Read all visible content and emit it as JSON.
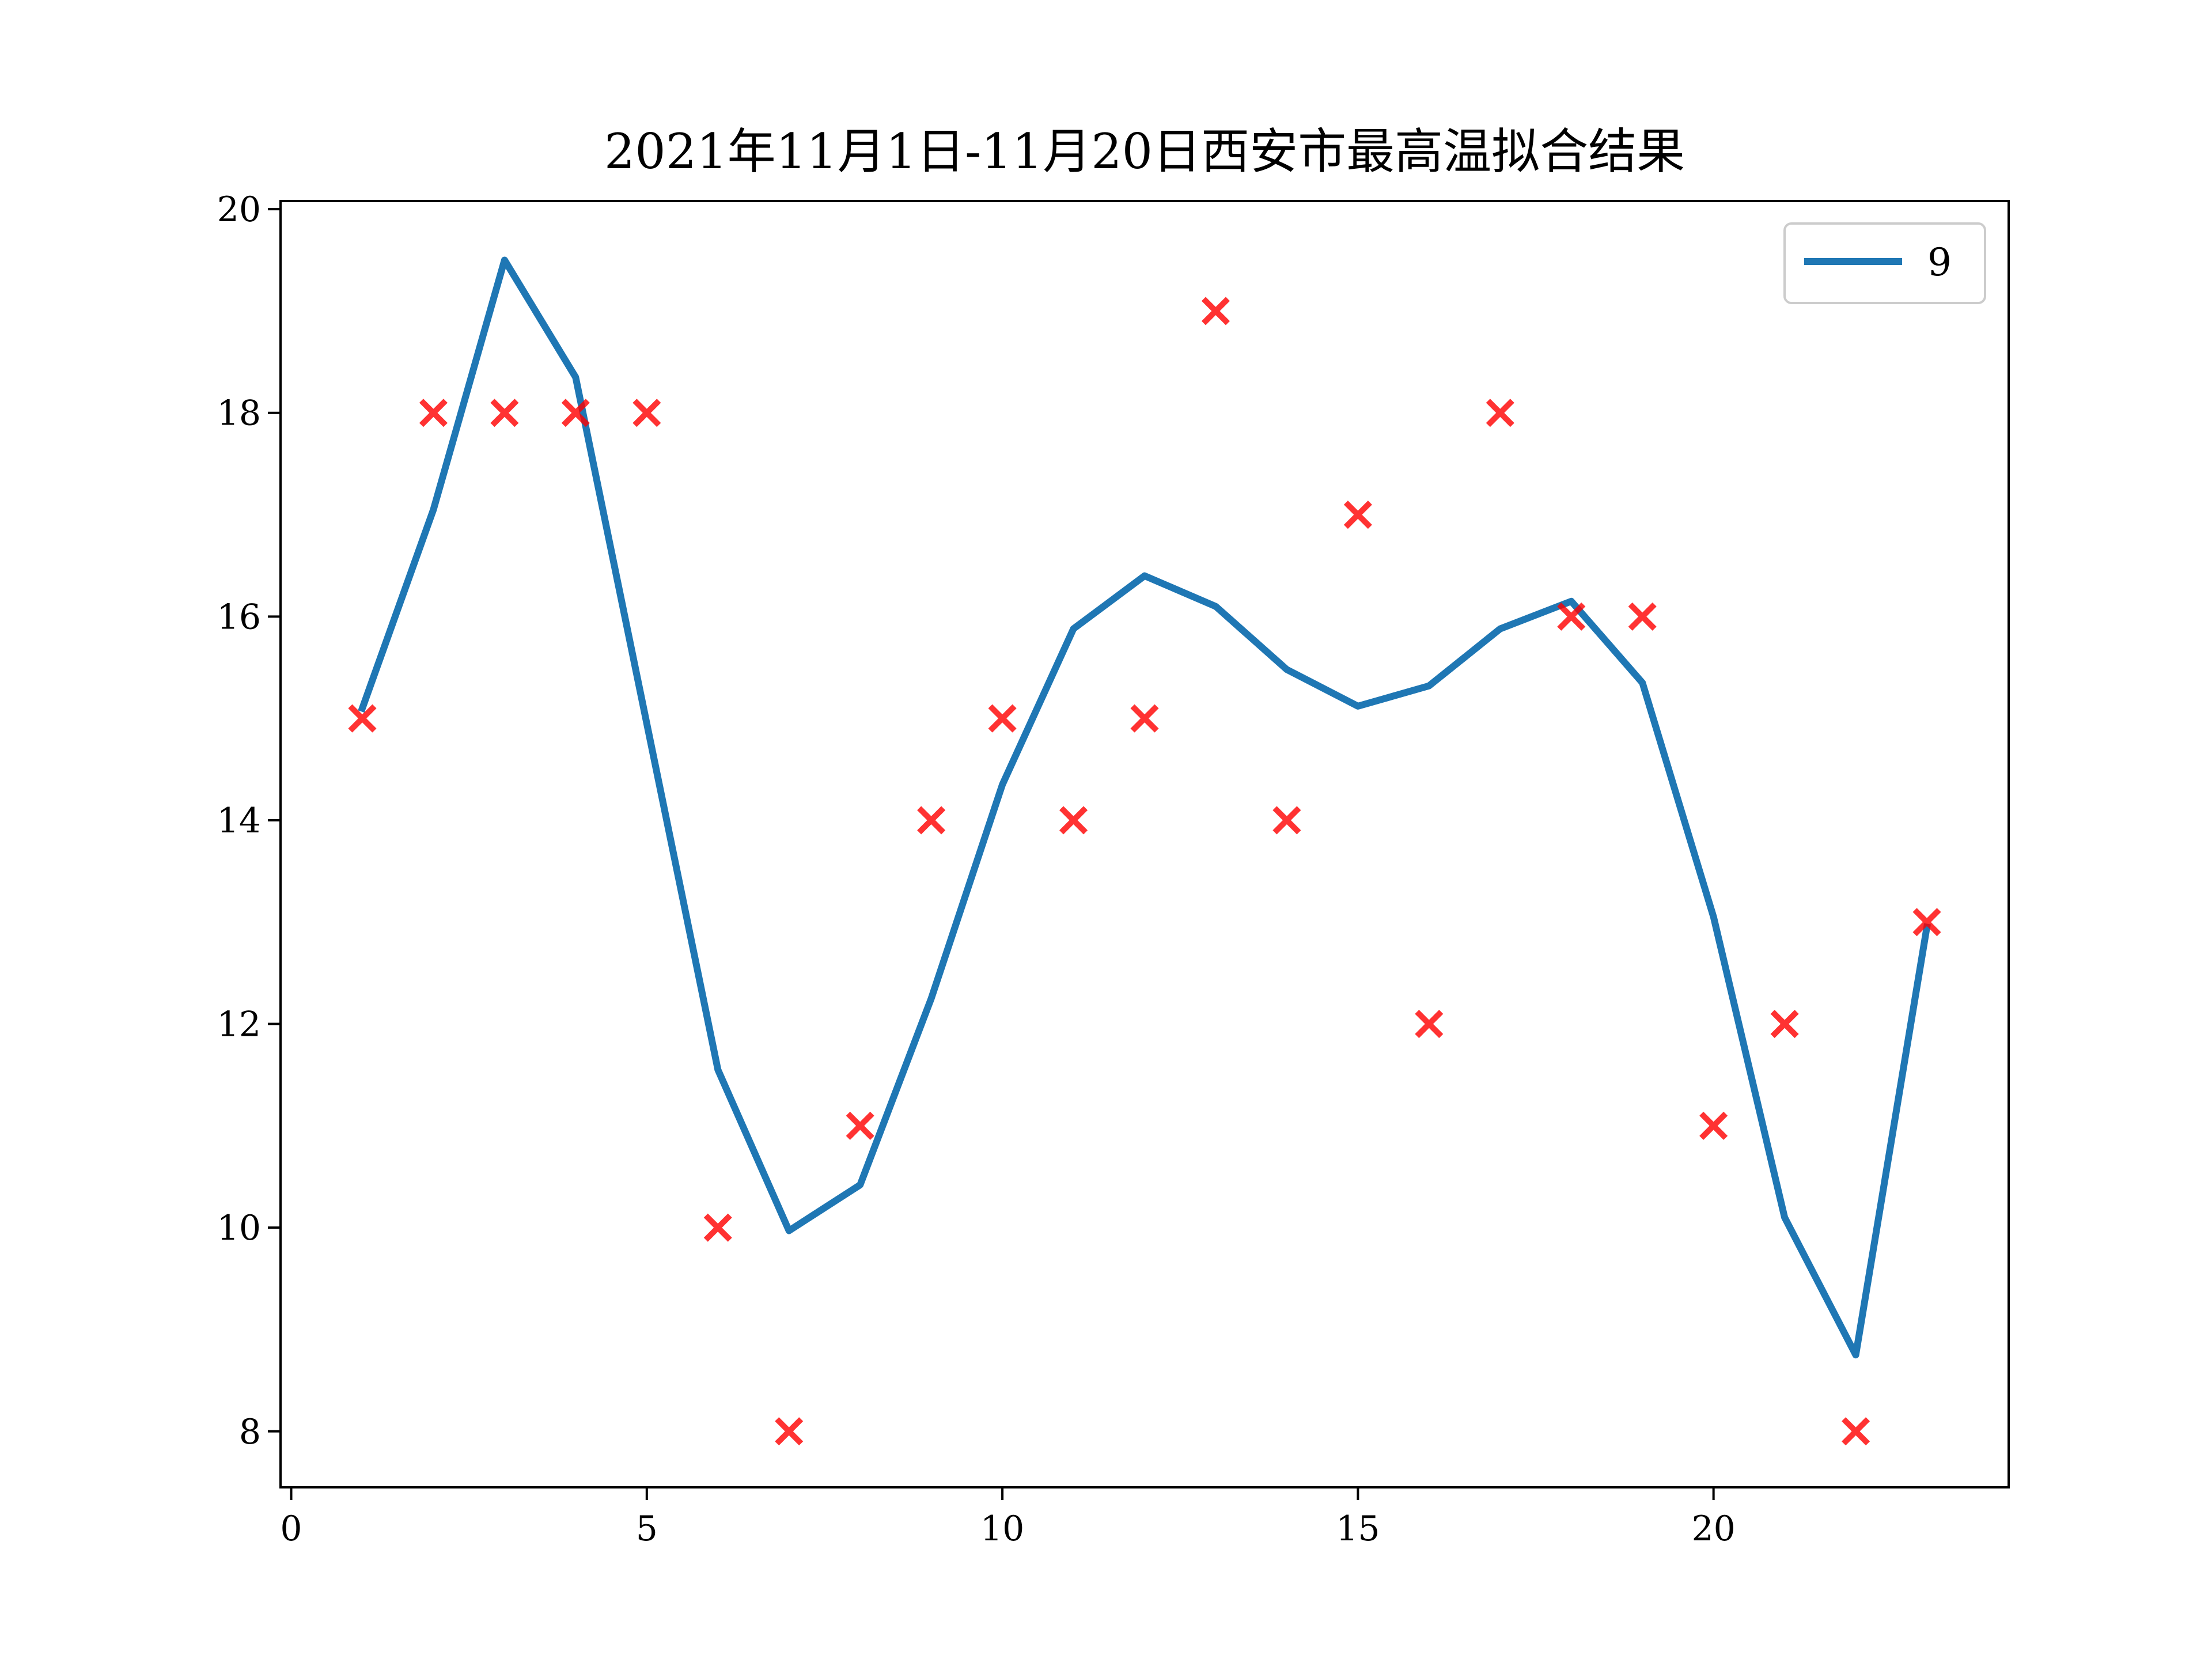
{
  "chart_data": {
    "type": "line",
    "title": "2021年11月1日-11月20日西安市最高温拟合结果",
    "xlabel": "",
    "ylabel": "",
    "xlim": [
      -0.15,
      24.15
    ],
    "ylim": [
      7.45,
      20.08
    ],
    "xticks": [
      0,
      5,
      10,
      15,
      20
    ],
    "yticks": [
      8,
      10,
      12,
      14,
      16,
      18,
      20
    ],
    "grid": false,
    "legend_position": "upper right",
    "series": [
      {
        "name": "9",
        "kind": "line",
        "color": "#1f77b4",
        "x": [
          1,
          2,
          3,
          4,
          5,
          6,
          7,
          8,
          9,
          10,
          11,
          12,
          13,
          14,
          15,
          16,
          17,
          18,
          19,
          20,
          21,
          22,
          23
        ],
        "y": [
          15.1,
          17.05,
          19.5,
          18.35,
          14.95,
          11.55,
          9.97,
          10.42,
          12.25,
          14.35,
          15.88,
          16.4,
          16.1,
          15.48,
          15.12,
          15.32,
          15.88,
          16.15,
          15.35,
          13.05,
          10.1,
          8.75,
          12.95
        ]
      },
      {
        "kind": "scatter",
        "marker": "x",
        "color": "#ff0000",
        "x": [
          1,
          2,
          3,
          4,
          5,
          6,
          7,
          8,
          9,
          10,
          11,
          12,
          13,
          14,
          15,
          16,
          17,
          18,
          19,
          20,
          21,
          22,
          23
        ],
        "y": [
          15,
          18,
          18,
          18,
          18,
          10,
          8,
          11,
          14,
          15,
          14,
          15,
          19,
          14,
          17,
          12,
          18,
          16,
          16,
          11,
          12,
          8,
          13
        ]
      }
    ]
  }
}
